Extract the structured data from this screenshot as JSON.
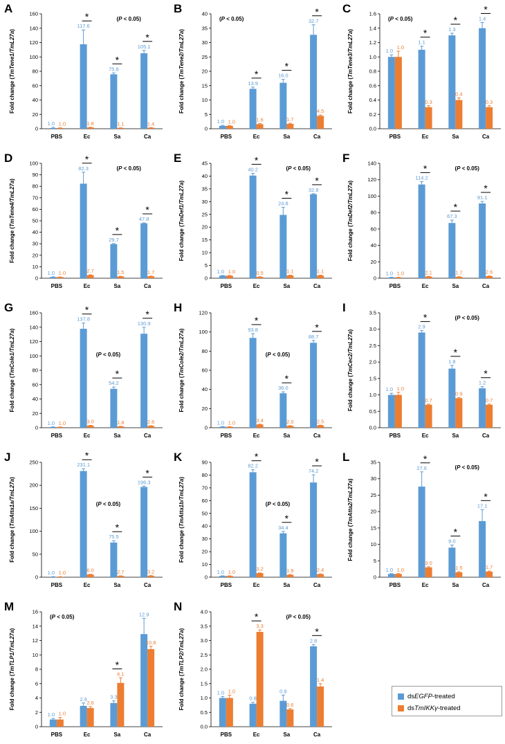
{
  "colors": {
    "egfp": "#5b9bd5",
    "ikk": "#ed7d31"
  },
  "legend": {
    "egfp_prefix": "ds",
    "egfp_gene": "EGFP",
    "egfp_suffix": "-treated",
    "ikk_prefix": "ds",
    "ikk_gene": "TmIKKγ",
    "ikk_suffix": "-treated"
  },
  "chart_data": [
    {
      "letter": "A",
      "type": "bar",
      "categories": [
        "PBS",
        "Ec",
        "Sa",
        "Ca"
      ],
      "ylabel_prefix": "Fold change (",
      "ylabel_gene": "TmTene1/TmL27a",
      "ylabel_suffix": ")",
      "ylim": [
        0,
        160
      ],
      "ystep": 20,
      "yfmt": 0,
      "sig_label": "(P < 0.05)",
      "sig_pos": "top-right",
      "significant": [
        "Ec",
        "Sa",
        "Ca"
      ],
      "series": [
        {
          "name": "dsEGFP-treated",
          "values": [
            1.0,
            117.6,
            75.8,
            105.1
          ],
          "errors": [
            1,
            20,
            2,
            4
          ],
          "labels": [
            "1.0",
            "117.6",
            "75.8",
            "105.1"
          ]
        },
        {
          "name": "dsTmIKKγ-treated",
          "values": [
            1.0,
            1.8,
            1.1,
            1.4
          ],
          "errors": [
            0.3,
            0.3,
            0.2,
            0.2
          ],
          "labels": [
            "1.0",
            "1.8",
            "1.1",
            "1.4"
          ]
        }
      ]
    },
    {
      "letter": "B",
      "type": "bar",
      "categories": [
        "PBS",
        "Ec",
        "Sa",
        "Ca"
      ],
      "ylabel_prefix": "Fold change (",
      "ylabel_gene": "TmTene2/TmL27a",
      "ylabel_suffix": ")",
      "ylim": [
        0,
        40
      ],
      "ystep": 5,
      "yfmt": 0,
      "sig_label": "(P < 0.05)",
      "sig_pos": "top-left",
      "significant": [
        "Ec",
        "Sa",
        "Ca"
      ],
      "series": [
        {
          "name": "dsEGFP-treated",
          "values": [
            1.0,
            13.9,
            16.0,
            32.7
          ],
          "errors": [
            0.2,
            0.6,
            1.2,
            3.5
          ],
          "labels": [
            "1.0",
            "13.9",
            "16.0",
            "32.7"
          ]
        },
        {
          "name": "dsTmIKKγ-treated",
          "values": [
            1.0,
            1.6,
            1.7,
            4.5
          ],
          "errors": [
            0.1,
            0.2,
            0.2,
            0.3
          ],
          "labels": [
            "1.0",
            "1.6",
            "1.7",
            "4.5"
          ]
        }
      ]
    },
    {
      "letter": "C",
      "type": "bar",
      "categories": [
        "PBS",
        "Ec",
        "Sa",
        "Ca"
      ],
      "ylabel_prefix": "Fold change (",
      "ylabel_gene": "TmTene3/TmL27a",
      "ylabel_suffix": ")",
      "ylim": [
        0,
        1.6
      ],
      "ystep": 0.2,
      "yfmt": 1,
      "sig_label": "(P < 0.05)",
      "sig_pos": "top-left",
      "significant": [
        "Ec",
        "Sa",
        "Ca"
      ],
      "series": [
        {
          "name": "dsEGFP-treated",
          "values": [
            1.0,
            1.1,
            1.3,
            1.4
          ],
          "errors": [
            0.03,
            0.05,
            0.03,
            0.08
          ],
          "labels": [
            "1.0",
            "1.1",
            "1.3",
            "1.4"
          ]
        },
        {
          "name": "dsTmIKKγ-treated",
          "values": [
            1.0,
            0.3,
            0.4,
            0.3
          ],
          "errors": [
            0.08,
            0.02,
            0.03,
            0.02
          ],
          "labels": [
            "1.0",
            "0.3",
            "0.4",
            "0.3"
          ]
        }
      ]
    },
    {
      "letter": "D",
      "type": "bar",
      "categories": [
        "PBS",
        "Ec",
        "Sa",
        "Ca"
      ],
      "ylabel_prefix": "Fold change (",
      "ylabel_gene": "TmTene4/TmL27a",
      "ylabel_suffix": ")",
      "ylim": [
        0,
        100
      ],
      "ystep": 10,
      "yfmt": 0,
      "sig_label": "(P < 0.05)",
      "sig_pos": "top-right",
      "significant": [
        "Ec",
        "Sa",
        "Ca"
      ],
      "series": [
        {
          "name": "dsEGFP-treated",
          "values": [
            1.0,
            82.3,
            29.7,
            47.8
          ],
          "errors": [
            0.2,
            10,
            0.5,
            0.4
          ],
          "labels": [
            "1.0",
            "82.3",
            "29.7",
            "47.8"
          ]
        },
        {
          "name": "dsTmIKKγ-treated",
          "values": [
            1.0,
            2.7,
            1.5,
            1.7
          ],
          "errors": [
            0.1,
            0.3,
            0.2,
            0.2
          ],
          "labels": [
            "1.0",
            "2.7",
            "1.5",
            "1.7"
          ]
        }
      ]
    },
    {
      "letter": "E",
      "type": "bar",
      "categories": [
        "PBS",
        "Ec",
        "Sa",
        "Ca"
      ],
      "ylabel_prefix": "Fold change (",
      "ylabel_gene": "TmDef1/TmL27a",
      "ylabel_suffix": ")",
      "ylim": [
        0,
        45
      ],
      "ystep": 5,
      "yfmt": 0,
      "sig_label": "(P < 0.05)",
      "sig_pos": "top-right",
      "significant": [
        "Ec",
        "Sa",
        "Ca"
      ],
      "series": [
        {
          "name": "dsEGFP-treated",
          "values": [
            1.0,
            40.2,
            24.8,
            32.9
          ],
          "errors": [
            0.1,
            0.9,
            3,
            0.2
          ],
          "labels": [
            "1.0",
            "40.2",
            "24.8",
            "32.9"
          ]
        },
        {
          "name": "dsTmIKKγ-treated",
          "values": [
            1.0,
            0.5,
            1.1,
            1.1
          ],
          "errors": [
            0.1,
            0.1,
            0.1,
            0.1
          ],
          "labels": [
            "1.0",
            "0.5",
            "1.1",
            "1.1"
          ]
        }
      ]
    },
    {
      "letter": "F",
      "type": "bar",
      "categories": [
        "PBS",
        "Ec",
        "Sa",
        "Ca"
      ],
      "ylabel_prefix": "Fold change (",
      "ylabel_gene": "TmDef2/TmL27a",
      "ylabel_suffix": ")",
      "ylim": [
        0,
        140
      ],
      "ystep": 20,
      "yfmt": 0,
      "sig_label": "(P < 0.05)",
      "sig_pos": "top-right",
      "significant": [
        "Ec",
        "Sa",
        "Ca"
      ],
      "series": [
        {
          "name": "dsEGFP-treated",
          "values": [
            1.0,
            114.2,
            67.3,
            91.1
          ],
          "errors": [
            0.2,
            3.5,
            3.5,
            2.5
          ],
          "labels": [
            "1.0",
            "114.2",
            "67.3",
            "91.1"
          ]
        },
        {
          "name": "dsTmIKKγ-treated",
          "values": [
            1.0,
            2.1,
            1.7,
            2.6
          ],
          "errors": [
            0.1,
            0.2,
            0.2,
            0.2
          ],
          "labels": [
            "1.0",
            "2.1",
            "1.7",
            "2.6"
          ]
        }
      ]
    },
    {
      "letter": "G",
      "type": "bar",
      "categories": [
        "PBS",
        "Ec",
        "Sa",
        "Ca"
      ],
      "ylabel_prefix": "Fold change (",
      "ylabel_gene": "TmCole1/TmL27a",
      "ylabel_suffix": ")",
      "ylim": [
        0,
        160
      ],
      "ystep": 20,
      "yfmt": 0,
      "sig_label": "(P < 0.05)",
      "sig_pos": "middle",
      "significant": [
        "Ec",
        "Sa",
        "Ca"
      ],
      "series": [
        {
          "name": "dsEGFP-treated",
          "values": [
            1.0,
            137.8,
            54.2,
            130.9
          ],
          "errors": [
            0.2,
            8,
            2.5,
            9
          ],
          "labels": [
            "1.0",
            "137.8",
            "54.2",
            "130.9"
          ]
        },
        {
          "name": "dsTmIKKγ-treated",
          "values": [
            1.0,
            3.0,
            1.8,
            2.6
          ],
          "errors": [
            0.1,
            0.3,
            0.2,
            0.2
          ],
          "labels": [
            "1.0",
            "3.0",
            "1.8",
            "2.6"
          ]
        }
      ]
    },
    {
      "letter": "H",
      "type": "bar",
      "categories": [
        "PBS",
        "Ec",
        "Sa",
        "Ca"
      ],
      "ylabel_prefix": "Fold change (",
      "ylabel_gene": "TmCole2/TmL27a",
      "ylabel_suffix": ")",
      "ylim": [
        0,
        120
      ],
      "ystep": 20,
      "yfmt": 0,
      "sig_label": "(P < 0.05)",
      "sig_pos": "middle",
      "significant": [
        "Ec",
        "Sa",
        "Ca"
      ],
      "series": [
        {
          "name": "dsEGFP-treated",
          "values": [
            1.0,
            93.8,
            36.0,
            88.7
          ],
          "errors": [
            0.2,
            4.5,
            1.5,
            2.5
          ],
          "labels": [
            "1.0",
            "93.8",
            "36.0",
            "88.7"
          ]
        },
        {
          "name": "dsTmIKKγ-treated",
          "values": [
            1.0,
            3.4,
            2.0,
            2.5
          ],
          "errors": [
            0.1,
            0.3,
            0.2,
            0.2
          ],
          "labels": [
            "1.0",
            "3.4",
            "2.0",
            "2.5"
          ]
        }
      ]
    },
    {
      "letter": "I",
      "type": "bar",
      "categories": [
        "PBS",
        "Ec",
        "Sa",
        "Ca"
      ],
      "ylabel_prefix": "Fold change (",
      "ylabel_gene": "TmCec2/TmL27a",
      "ylabel_suffix": ")",
      "ylim": [
        0,
        3.5
      ],
      "ystep": 0.5,
      "yfmt": 1,
      "sig_label": "(P < 0.05)",
      "sig_pos": "top-right",
      "significant": [
        "Ec",
        "Sa",
        "Ca"
      ],
      "series": [
        {
          "name": "dsEGFP-treated",
          "values": [
            1.0,
            2.9,
            1.8,
            1.2
          ],
          "errors": [
            0.05,
            0.06,
            0.1,
            0.05
          ],
          "labels": [
            "1.0",
            "2.9",
            "1.8",
            "1.2"
          ]
        },
        {
          "name": "dsTmIKKγ-treated",
          "values": [
            1.0,
            0.7,
            0.9,
            0.7
          ],
          "errors": [
            0.08,
            0.02,
            0.02,
            0.02
          ],
          "labels": [
            "1.0",
            "0.7",
            "0.9",
            "0.7"
          ]
        }
      ]
    },
    {
      "letter": "J",
      "type": "bar",
      "categories": [
        "PBS",
        "Ec",
        "Sa",
        "Ca"
      ],
      "ylabel_prefix": "Fold change (",
      "ylabel_gene": "TmAtta1a/TmL27a",
      "ylabel_suffix": ")",
      "ylim": [
        0,
        250
      ],
      "ystep": 50,
      "yfmt": 0,
      "sig_label": "(P < 0.05)",
      "sig_pos": "middle",
      "significant": [
        "Ec",
        "Sa",
        "Ca"
      ],
      "series": [
        {
          "name": "dsEGFP-treated",
          "values": [
            1.0,
            231.1,
            75.5,
            196.3
          ],
          "errors": [
            0.3,
            5,
            4,
            2
          ],
          "labels": [
            "1.0",
            "231.1",
            "75.5",
            "196.3"
          ]
        },
        {
          "name": "dsTmIKKγ-treated",
          "values": [
            1.0,
            6.0,
            2.7,
            3.2
          ],
          "errors": [
            0.2,
            0.5,
            0.3,
            0.3
          ],
          "labels": [
            "1.0",
            "6.0",
            "2.7",
            "3.2"
          ]
        }
      ]
    },
    {
      "letter": "K",
      "type": "bar",
      "categories": [
        "PBS",
        "Ec",
        "Sa",
        "Ca"
      ],
      "ylabel_prefix": "Fold change (",
      "ylabel_gene": "TmAtta1b/TmL27a",
      "ylabel_suffix": ")",
      "ylim": [
        0,
        90
      ],
      "ystep": 10,
      "yfmt": 0,
      "sig_label": "(P < 0.05)",
      "sig_pos": "middle",
      "significant": [
        "Ec",
        "Sa",
        "Ca"
      ],
      "series": [
        {
          "name": "dsEGFP-treated",
          "values": [
            1.0,
            82.2,
            34.4,
            74.2
          ],
          "errors": [
            0.1,
            2,
            1.5,
            6
          ],
          "labels": [
            "1.0",
            "82.2",
            "34.4",
            "74.2"
          ]
        },
        {
          "name": "dsTmIKKγ-treated",
          "values": [
            1.0,
            3.2,
            1.9,
            2.4
          ],
          "errors": [
            0.1,
            0.2,
            0.2,
            0.2
          ],
          "labels": [
            "1.0",
            "3.2",
            "1.9",
            "2.4"
          ]
        }
      ]
    },
    {
      "letter": "L",
      "type": "bar",
      "categories": [
        "PBS",
        "Ec",
        "Sa",
        "Ca"
      ],
      "ylabel_prefix": "Fold change (",
      "ylabel_gene": "TmAtta2/TmL27a",
      "ylabel_suffix": ")",
      "ylim": [
        0,
        35
      ],
      "ystep": 5,
      "yfmt": 0,
      "sig_label": "(P < 0.05)",
      "sig_pos": "top-right",
      "significant": [
        "Ec",
        "Sa",
        "Ca"
      ],
      "series": [
        {
          "name": "dsEGFP-treated",
          "values": [
            1.0,
            27.6,
            9.0,
            17.1
          ],
          "errors": [
            0.1,
            4.5,
            0.8,
            3.5
          ],
          "labels": [
            "1.0",
            "27.6",
            "9.0",
            "17.1"
          ]
        },
        {
          "name": "dsTmIKKγ-treated",
          "values": [
            1.0,
            3.0,
            1.5,
            1.7
          ],
          "errors": [
            0.1,
            0.2,
            0.2,
            0.2
          ],
          "labels": [
            "1.0",
            "3.0",
            "1.5",
            "1.7"
          ]
        }
      ]
    },
    {
      "letter": "M",
      "type": "bar",
      "categories": [
        "PBS",
        "Ec",
        "Sa",
        "Ca"
      ],
      "ylabel_prefix": "Fold change (",
      "ylabel_gene": "TmTLP1/TmL27a",
      "ylabel_suffix": ")",
      "ylim": [
        0,
        16
      ],
      "ystep": 2,
      "yfmt": 0,
      "sig_label": "(P < 0.05)",
      "sig_pos": "top-left",
      "significant": [
        "Sa"
      ],
      "series": [
        {
          "name": "dsEGFP-treated",
          "values": [
            1.0,
            2.9,
            3.3,
            12.9
          ],
          "errors": [
            0.15,
            0.4,
            0.3,
            2.2
          ],
          "labels": [
            "1.0",
            "2.9",
            "3.3",
            "12.9"
          ]
        },
        {
          "name": "dsTmIKKγ-treated",
          "values": [
            1.0,
            2.6,
            6.1,
            10.8
          ],
          "errors": [
            0.3,
            0.2,
            0.7,
            0.4
          ],
          "labels": [
            "1.0",
            "2.6",
            "6.1",
            "10.8"
          ]
        }
      ]
    },
    {
      "letter": "N",
      "type": "bar",
      "categories": [
        "PBS",
        "Ec",
        "Sa",
        "Ca"
      ],
      "ylabel_prefix": "Fold change (",
      "ylabel_gene": "TmTLP2/TmL27a",
      "ylabel_suffix": ")",
      "ylim": [
        0,
        4.0
      ],
      "ystep": 0.5,
      "yfmt": 1,
      "sig_label": "(P < 0.05)",
      "sig_pos": "top-right",
      "significant": [
        "Ec",
        "Ca"
      ],
      "series": [
        {
          "name": "dsEGFP-treated",
          "values": [
            1.0,
            0.8,
            0.9,
            2.8
          ],
          "errors": [
            0.05,
            0.05,
            0.2,
            0.06
          ],
          "labels": [
            "1.0",
            "0.8",
            "0.9",
            "2.8"
          ]
        },
        {
          "name": "dsTmIKKγ-treated",
          "values": [
            1.0,
            3.3,
            0.6,
            1.4
          ],
          "errors": [
            0.1,
            0.07,
            0.03,
            0.1
          ],
          "labels": [
            "1.0",
            "3.3",
            "0.6",
            "1.4"
          ]
        }
      ]
    }
  ]
}
